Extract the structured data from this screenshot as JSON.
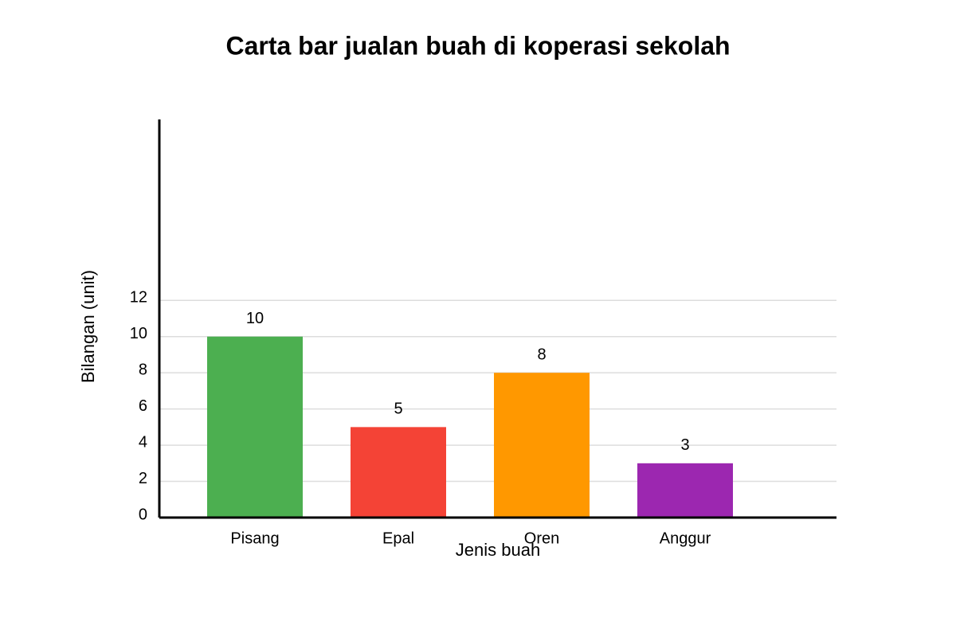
{
  "chart_data": {
    "type": "bar",
    "title": "Carta bar jualan buah di koperasi sekolah",
    "x_label": "Jenis buah",
    "y_label": "Bilangan (unit)",
    "categories": [
      "Pisang",
      "Epal",
      "Oren",
      "Anggur"
    ],
    "values": [
      10,
      5,
      8,
      3
    ],
    "colors": [
      "#4caf50",
      "#f44336",
      "#ff9800",
      "#9c27b0"
    ],
    "ylim": [
      0,
      22
    ],
    "yticks": [
      0,
      2,
      4,
      6,
      8,
      10,
      12
    ],
    "grid": true
  }
}
